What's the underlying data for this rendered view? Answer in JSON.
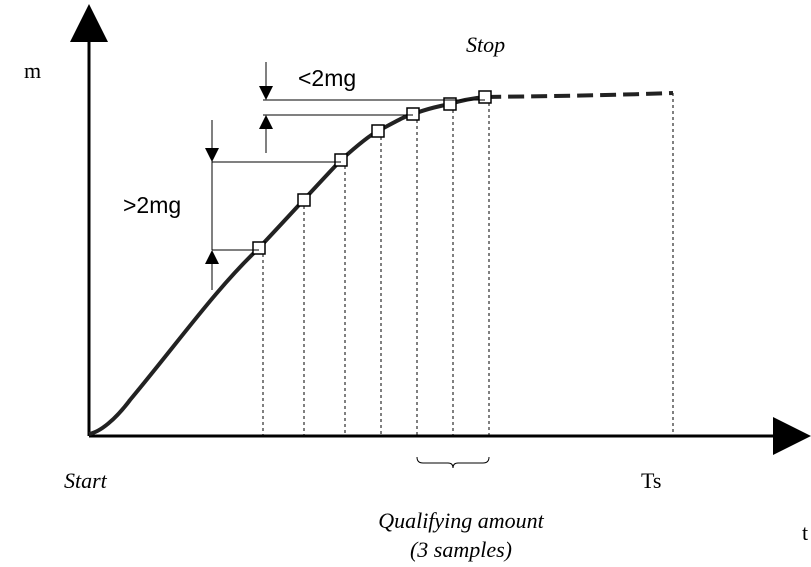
{
  "axes": {
    "y_label": "m",
    "x_label": "t"
  },
  "labels": {
    "start": "Start",
    "stop": "Stop",
    "ts": "Ts",
    "less_than": "<2mg",
    "greater_than": ">2mg",
    "qualifying_line1": "Qualifying amount",
    "qualifying_line2": "(3 samples)"
  },
  "samples": {
    "count": 7,
    "qualifying_count": 3
  }
}
